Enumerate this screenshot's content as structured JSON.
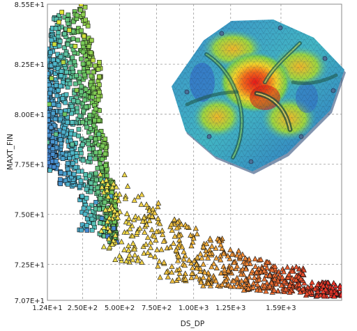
{
  "chart_data": {
    "type": "scatter",
    "title": "",
    "xlabel": "DS_DP",
    "ylabel": "MAXT_FIN",
    "xlim": [
      12.4,
      2000
    ],
    "ylim": [
      70.7,
      85.5
    ],
    "x_ticks": [
      12.4,
      250,
      500,
      750,
      1000,
      1250,
      1590
    ],
    "x_tick_labels": [
      "1.24E+1",
      "2.50E+2",
      "5.00E+2",
      "7.50E+2",
      "1.00E+3",
      "1.25E+3",
      "1.59E+3"
    ],
    "y_ticks": [
      70.7,
      72.5,
      75.0,
      77.5,
      80.0,
      82.5,
      85.5
    ],
    "y_tick_labels": [
      "7.07E+1",
      "7.25E+1",
      "7.50E+1",
      "7.75E+1",
      "8.00E+1",
      "8.25E+1",
      "8.55E+1"
    ],
    "grid": true,
    "legend": "none",
    "series": [
      {
        "marker": "square",
        "color_scale": "blue-cyan-green-yellow-red",
        "x_range": [
          12.4,
          480
        ],
        "points": [
          [
            12.4,
            78.6
          ],
          [
            25,
            80.5
          ],
          [
            30,
            77.2
          ],
          [
            40,
            81.8
          ],
          [
            60,
            83.5
          ],
          [
            70,
            79.0
          ],
          [
            90,
            84.6
          ],
          [
            110,
            85.1
          ],
          [
            120,
            82.6
          ],
          [
            130,
            80.0
          ],
          [
            150,
            76.5
          ],
          [
            160,
            84.2
          ],
          [
            180,
            78.5
          ],
          [
            200,
            83.4
          ],
          [
            210,
            81.2
          ],
          [
            230,
            76.4
          ],
          [
            240,
            85.5
          ],
          [
            250,
            79.6
          ],
          [
            260,
            83.9
          ],
          [
            280,
            74.2
          ],
          [
            300,
            77.8
          ],
          [
            320,
            82.7
          ],
          [
            340,
            75.6
          ],
          [
            360,
            79.0
          ],
          [
            380,
            74.8
          ],
          [
            400,
            76.7
          ],
          [
            420,
            73.9
          ],
          [
            440,
            75.9
          ],
          [
            460,
            74.3
          ],
          [
            480,
            73.6
          ]
        ]
      },
      {
        "marker": "triangle",
        "color_scale": "yellow-orange-red",
        "x_range": [
          370,
          2000
        ],
        "points": [
          [
            370,
            77.0
          ],
          [
            420,
            76.5
          ],
          [
            450,
            73.5
          ],
          [
            500,
            76.0
          ],
          [
            560,
            73.2
          ],
          [
            600,
            75.7
          ],
          [
            650,
            72.6
          ],
          [
            720,
            74.9
          ],
          [
            800,
            72.6
          ],
          [
            850,
            74.5
          ],
          [
            900,
            71.8
          ],
          [
            1000,
            73.8
          ],
          [
            1050,
            71.6
          ],
          [
            1150,
            73.3
          ],
          [
            1250,
            71.4
          ],
          [
            1350,
            72.8
          ],
          [
            1450,
            71.2
          ],
          [
            1550,
            72.4
          ],
          [
            1650,
            71.1
          ],
          [
            1800,
            71.6
          ],
          [
            1950,
            70.9
          ],
          [
            2000,
            71.0
          ]
        ]
      }
    ],
    "inset": "fem-plate-stress-contour"
  }
}
